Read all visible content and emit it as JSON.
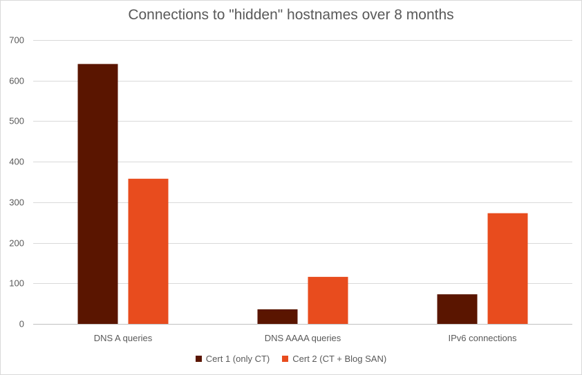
{
  "chart_data": {
    "type": "bar",
    "title": "Connections to \"hidden\" hostnames over 8 months",
    "xlabel": "",
    "ylabel": "",
    "categories": [
      "DNS A queries",
      "DNS AAAA queries",
      "IPv6 connections"
    ],
    "series": [
      {
        "name": "Cert 1 (only CT)",
        "color": "#5a1500",
        "values": [
          641,
          36,
          73
        ]
      },
      {
        "name": "Cert 2 (CT + Blog SAN)",
        "color": "#e84c1e",
        "values": [
          358,
          116,
          273
        ]
      }
    ],
    "ylim": [
      0,
      700
    ],
    "yticks": [
      0,
      100,
      200,
      300,
      400,
      500,
      600,
      700
    ],
    "grid": true,
    "legend_position": "bottom"
  }
}
